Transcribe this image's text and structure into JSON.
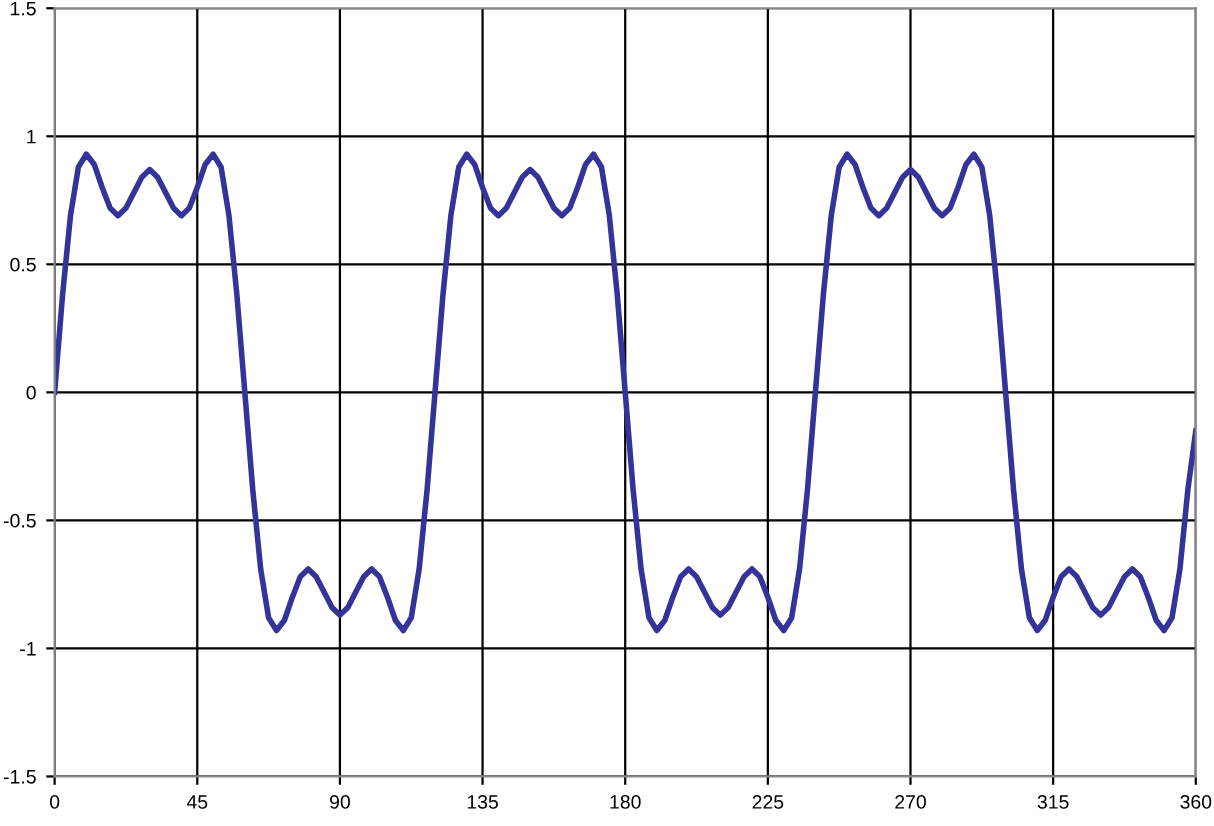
{
  "chart_data": {
    "type": "line",
    "x": [
      0,
      2.5,
      5,
      7.5,
      10,
      12.5,
      15,
      17.5,
      20,
      22.5,
      25,
      27.5,
      30,
      32.5,
      35,
      37.5,
      40,
      42.5,
      45,
      47.5,
      50,
      52.5,
      55,
      57.5,
      60,
      62.5,
      65,
      67.5,
      70,
      72.5,
      75,
      77.5,
      80,
      82.5,
      85,
      87.5,
      90,
      92.5,
      95,
      97.5,
      100,
      102.5,
      105,
      107.5,
      110,
      112.5,
      115,
      117.5,
      120,
      122.5,
      125,
      127.5,
      130,
      132.5,
      135,
      137.5,
      140,
      142.5,
      145,
      147.5,
      150,
      152.5,
      155,
      157.5,
      160,
      162.5,
      165,
      167.5,
      170,
      172.5,
      175,
      177.5,
      180,
      182.5,
      185,
      187.5,
      190,
      192.5,
      195,
      197.5,
      200,
      202.5,
      205,
      207.5,
      210,
      212.5,
      215,
      217.5,
      220,
      222.5,
      225,
      227.5,
      230,
      232.5,
      235,
      237.5,
      240,
      242.5,
      245,
      247.5,
      250,
      252.5,
      255,
      257.5,
      260,
      262.5,
      265,
      267.5,
      270,
      272.5,
      275,
      277.5,
      280,
      282.5,
      285,
      287.5,
      290,
      292.5,
      295,
      297.5,
      300,
      302.5,
      305,
      307.5,
      310,
      312.5,
      315,
      317.5,
      320,
      322.5,
      325,
      327.5,
      330,
      332.5,
      335,
      337.5,
      340,
      342.5,
      345,
      347.5,
      350,
      352.5,
      355,
      357.5,
      360
    ],
    "series": [
      {
        "color": "#333399",
        "values": [
          0,
          0.38,
          0.69,
          0.88,
          0.93,
          0.89,
          0.8,
          0.72,
          0.69,
          0.72,
          0.78,
          0.84,
          0.87,
          0.84,
          0.78,
          0.72,
          0.69,
          0.72,
          0.8,
          0.89,
          0.93,
          0.88,
          0.69,
          0.38,
          0,
          -0.38,
          -0.69,
          -0.88,
          -0.93,
          -0.89,
          -0.8,
          -0.72,
          -0.69,
          -0.72,
          -0.78,
          -0.84,
          -0.87,
          -0.84,
          -0.78,
          -0.72,
          -0.69,
          -0.72,
          -0.8,
          -0.89,
          -0.93,
          -0.88,
          -0.69,
          -0.38,
          0,
          0.38,
          0.69,
          0.88,
          0.93,
          0.89,
          0.8,
          0.72,
          0.69,
          0.72,
          0.78,
          0.84,
          0.87,
          0.84,
          0.78,
          0.72,
          0.69,
          0.72,
          0.8,
          0.89,
          0.93,
          0.88,
          0.69,
          0.38,
          0,
          -0.38,
          -0.69,
          -0.88,
          -0.93,
          -0.89,
          -0.8,
          -0.72,
          -0.69,
          -0.72,
          -0.78,
          -0.84,
          -0.87,
          -0.84,
          -0.78,
          -0.72,
          -0.69,
          -0.72,
          -0.8,
          -0.89,
          -0.93,
          -0.88,
          -0.69,
          -0.38,
          0,
          0.38,
          0.69,
          0.88,
          0.93,
          0.89,
          0.8,
          0.72,
          0.69,
          0.72,
          0.78,
          0.84,
          0.87,
          0.84,
          0.78,
          0.72,
          0.69,
          0.72,
          0.8,
          0.89,
          0.93,
          0.88,
          0.69,
          0.38,
          0,
          -0.38,
          -0.69,
          -0.88,
          -0.93,
          -0.89,
          -0.8,
          -0.72,
          -0.69,
          -0.72,
          -0.78,
          -0.84,
          -0.87,
          -0.84,
          -0.78,
          -0.72,
          -0.69,
          -0.72,
          -0.8,
          -0.89,
          -0.93,
          -0.88,
          -0.69,
          -0.38,
          -0.15
        ]
      }
    ],
    "xlim": [
      0,
      360
    ],
    "xticks": [
      0,
      45,
      90,
      135,
      180,
      225,
      270,
      315,
      360
    ],
    "ylim": [
      -1.5,
      1.5
    ],
    "yticks": [
      -1.5,
      -1,
      -0.5,
      0,
      0.5,
      1,
      1.5
    ],
    "grid": true,
    "marker": "none",
    "line_style": "solid",
    "legend": false
  }
}
